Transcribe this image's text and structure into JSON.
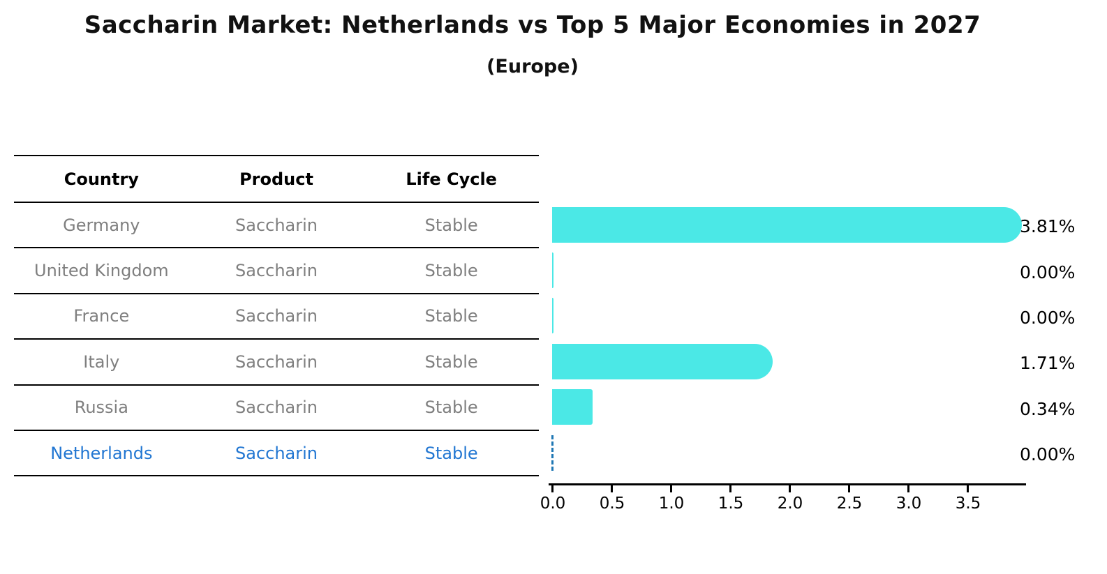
{
  "title": "Saccharin Market: Netherlands vs Top 5 Major Economies in 2027",
  "subtitle": "(Europe)",
  "table": {
    "headers": [
      "Country",
      "Product",
      "Life Cycle"
    ],
    "rows": [
      {
        "country": "Germany",
        "product": "Saccharin",
        "life_cycle": "Stable"
      },
      {
        "country": "United Kingdom",
        "product": "Saccharin",
        "life_cycle": "Stable"
      },
      {
        "country": "France",
        "product": "Saccharin",
        "life_cycle": "Stable"
      },
      {
        "country": "Italy",
        "product": "Saccharin",
        "life_cycle": "Stable"
      },
      {
        "country": "Russia",
        "product": "Saccharin",
        "life_cycle": "Stable"
      },
      {
        "country": "Netherlands",
        "product": "Saccharin",
        "life_cycle": "Stable"
      }
    ],
    "highlighted_row": "Netherlands"
  },
  "chart_data": {
    "type": "bar",
    "orientation": "horizontal",
    "categories": [
      "Germany",
      "United Kingdom",
      "France",
      "Italy",
      "Russia",
      "Netherlands"
    ],
    "values": [
      3.81,
      0.0,
      0.0,
      1.71,
      0.34,
      0.0
    ],
    "value_labels": [
      "3.81%",
      "0.00%",
      "0.00%",
      "1.71%",
      "0.34%",
      "0.00%"
    ],
    "x_tick_labels": [
      "0.0",
      "0.5",
      "1.0",
      "1.5",
      "2.0",
      "2.5",
      "3.0",
      "3.5"
    ],
    "xlim": [
      0,
      4.0
    ],
    "xlabel": "",
    "ylabel": "",
    "grid": false,
    "legend": false,
    "bar_color": "#4be8e6",
    "highlight_index": 5,
    "highlight_style": "dashed-blue-line-at-zero",
    "highlight_color": "#1f77b4",
    "text_color_rows": "#7f7f7f",
    "text_color_highlight": "#2176d2"
  }
}
